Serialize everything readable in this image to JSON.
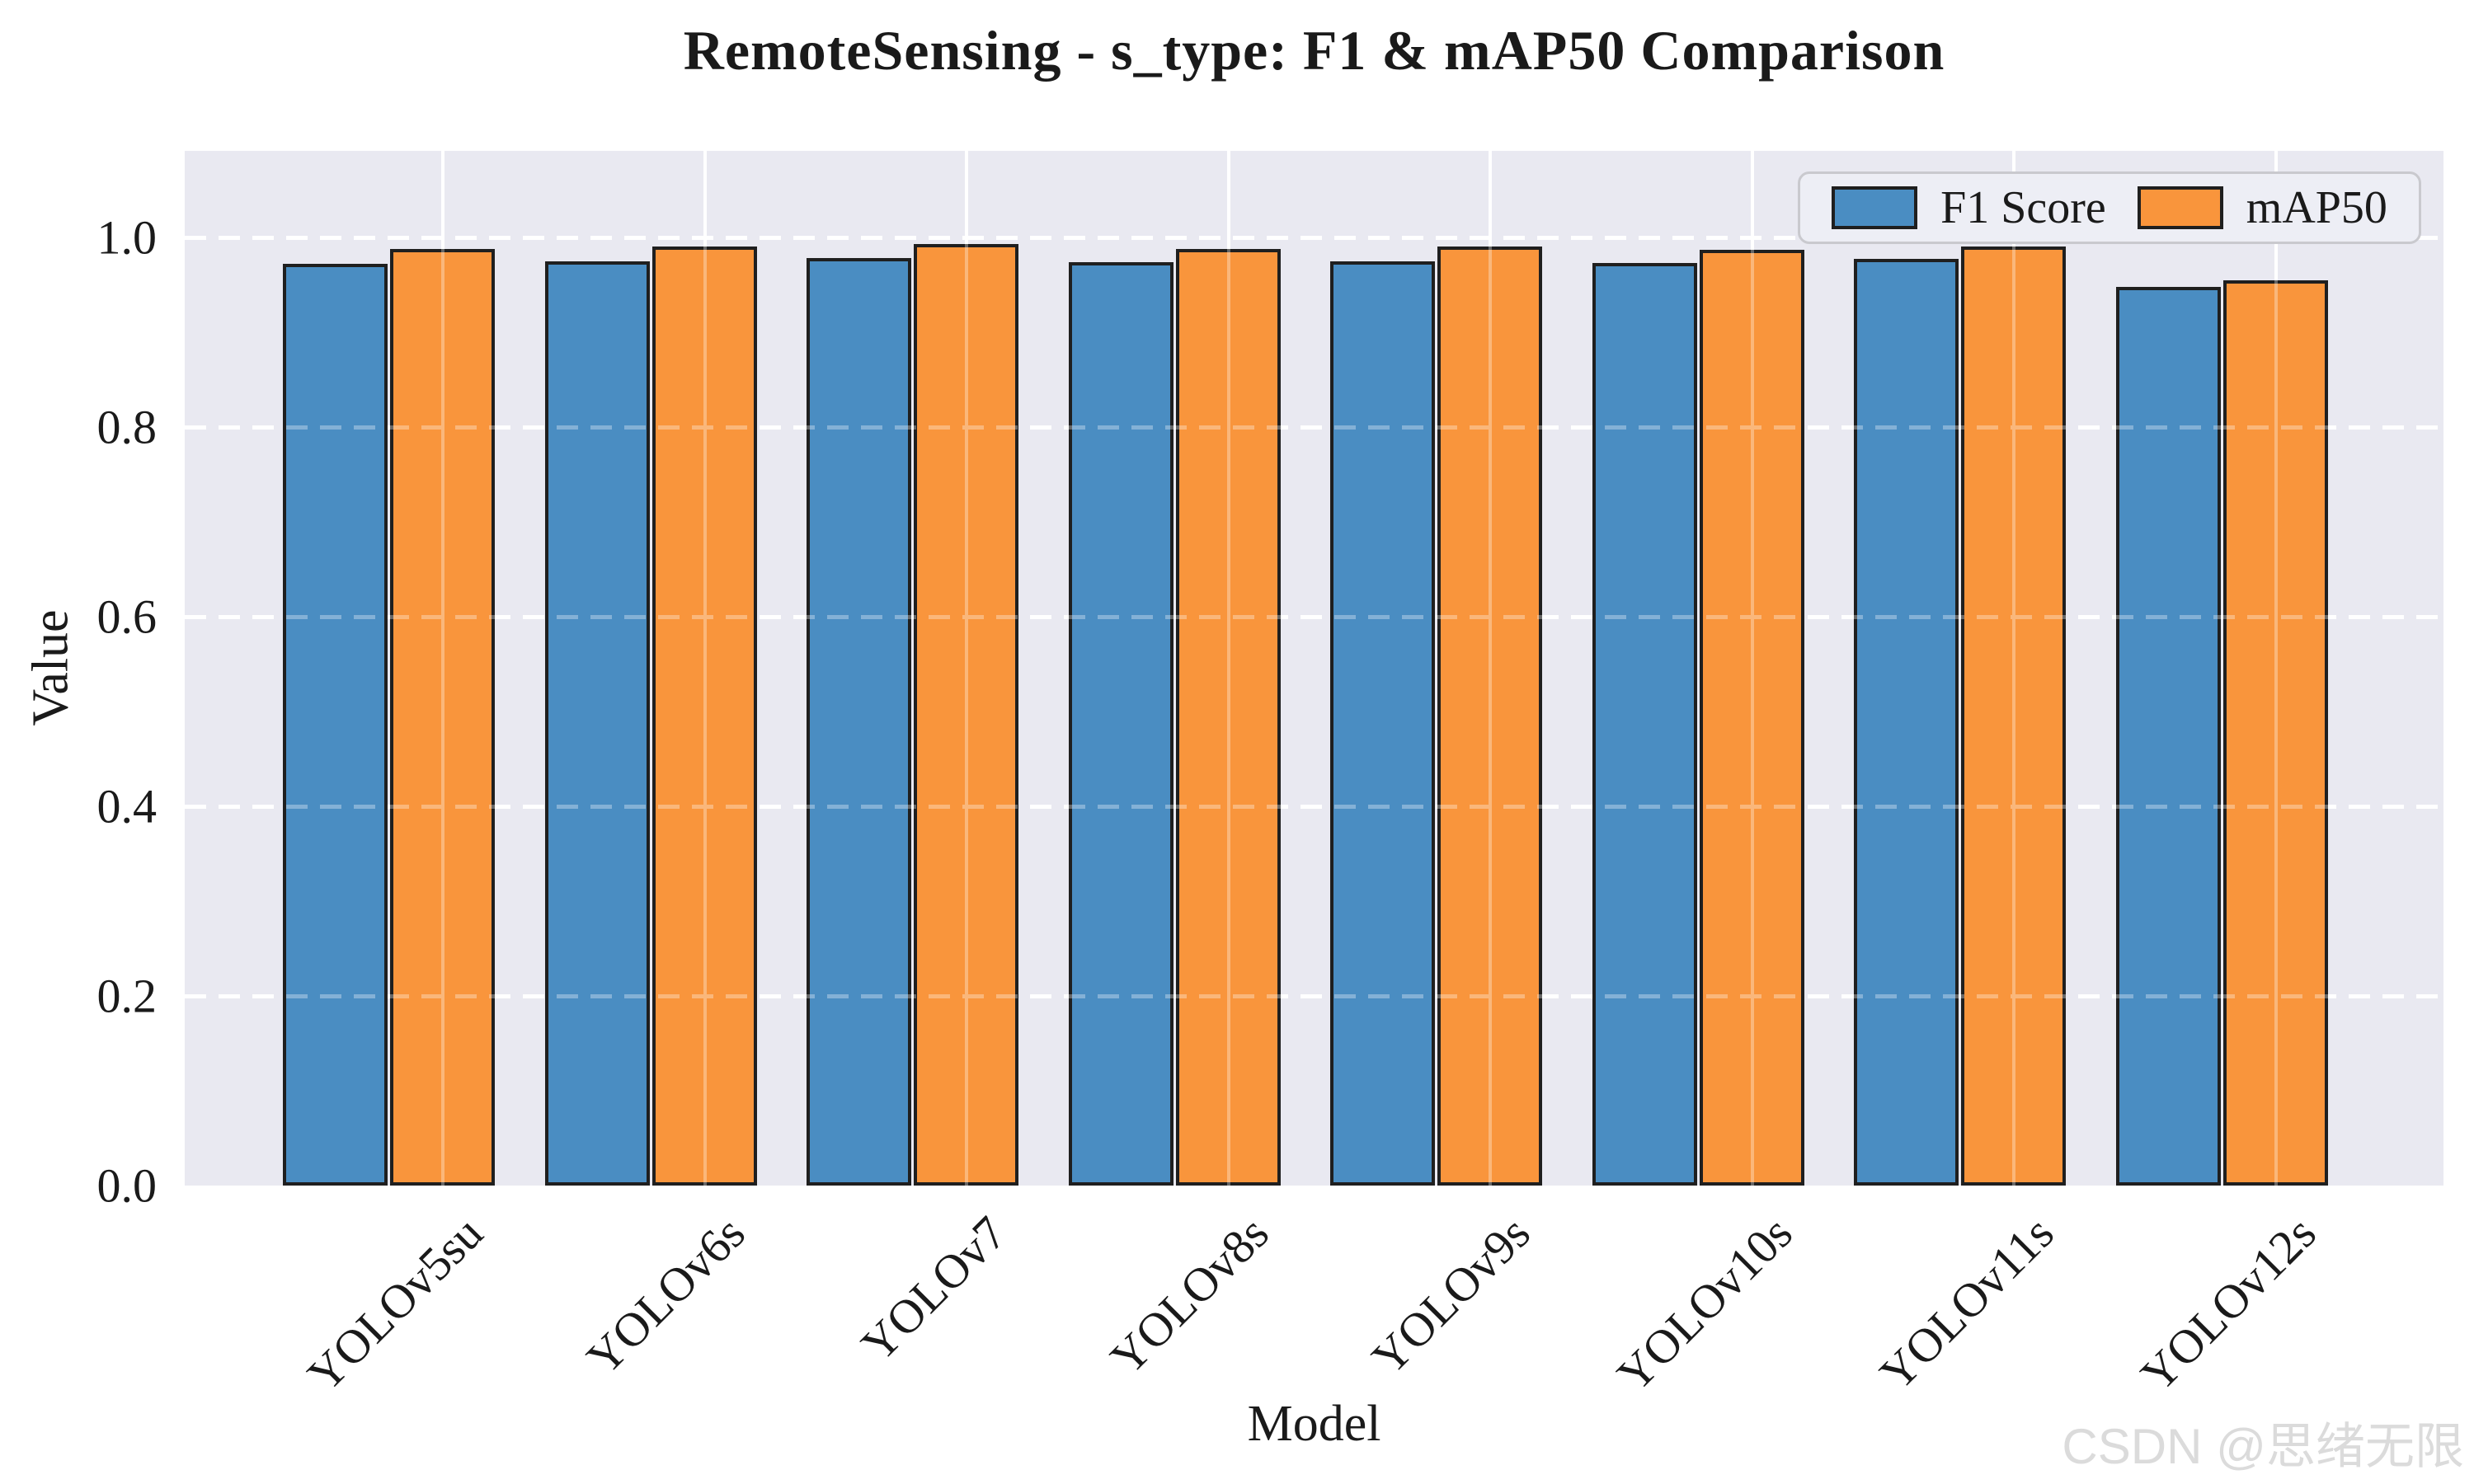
{
  "watermark": "CSDN @思绪无限",
  "chart_data": {
    "type": "bar",
    "title": "RemoteSensing - s_type: F1 & mAP50 Comparison",
    "xlabel": "Model",
    "ylabel": "Value",
    "categories": [
      "YOLOv5su",
      "YOLOv6s",
      "YOLOv7",
      "YOLOv8s",
      "YOLOv9s",
      "YOLOv10s",
      "YOLOv11s",
      "YOLOv12s"
    ],
    "series": [
      {
        "name": "F1 Score",
        "color": "#4a8dc2",
        "values": [
          0.972,
          0.975,
          0.978,
          0.974,
          0.975,
          0.973,
          0.977,
          0.948
        ]
      },
      {
        "name": "mAP50",
        "color": "#f9953c",
        "values": [
          0.988,
          0.99,
          0.993,
          0.988,
          0.99,
          0.987,
          0.99,
          0.955
        ]
      }
    ],
    "bar_edge_color": "#1f1f1f",
    "plot_background": "#e9e9f1",
    "grid_color": "#ffffff",
    "ylim": [
      0,
      1.09
    ],
    "yticks": [
      0.0,
      0.2,
      0.4,
      0.6,
      0.8,
      1.0
    ],
    "grid": true,
    "legend_position": "upper right"
  }
}
